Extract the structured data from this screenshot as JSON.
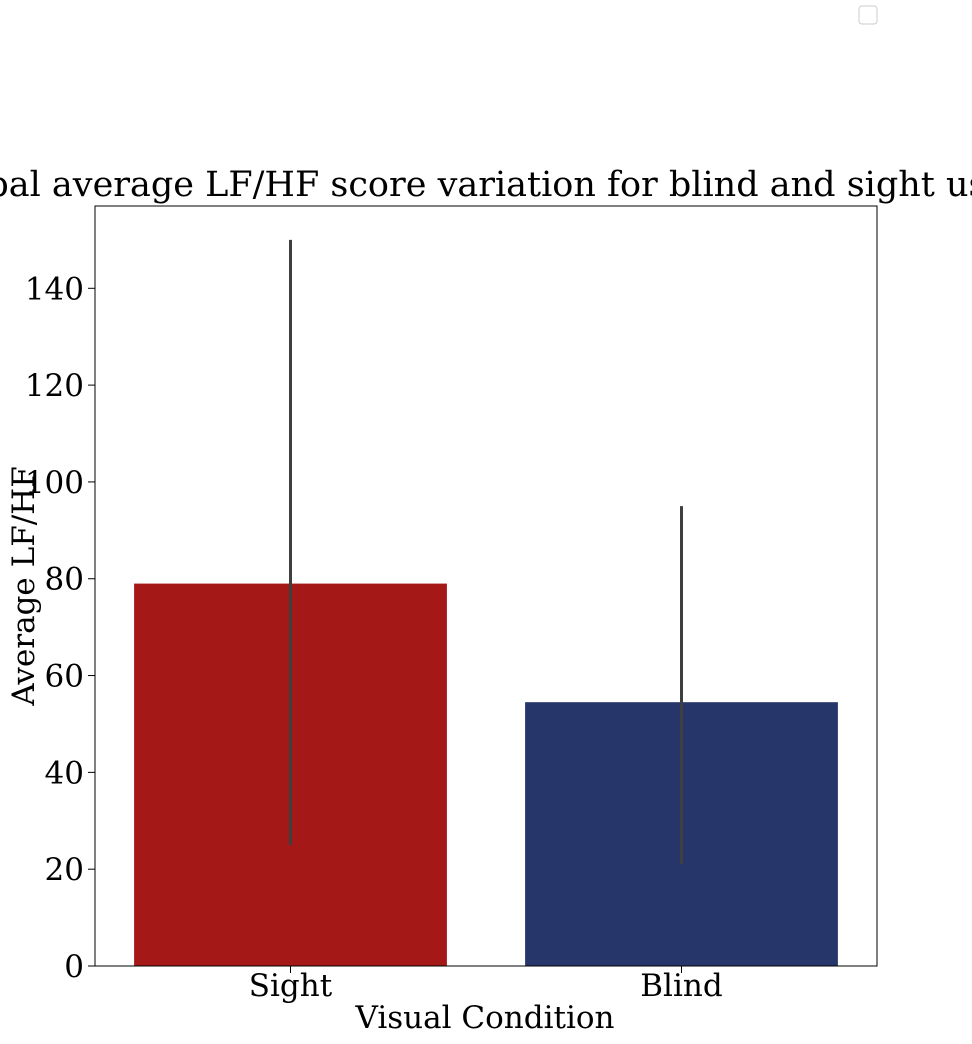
{
  "chart_data": {
    "type": "bar",
    "title": "Global average LF/HF score variation for blind and sight users",
    "xlabel": "Visual Condition",
    "ylabel": "Average LF/HF",
    "categories": [
      "Sight",
      "Blind"
    ],
    "values": [
      79,
      54.5
    ],
    "error_bars": [
      {
        "low": 25,
        "high": 150
      },
      {
        "low": 21,
        "high": 95
      }
    ],
    "colors": [
      "#a51818",
      "#26366a"
    ],
    "error_bar_color": "#3f3f3f",
    "ylim": [
      0,
      157
    ],
    "yticks": [
      0,
      20,
      40,
      60,
      80,
      100,
      120,
      140
    ],
    "grid": false,
    "legend": {
      "placement": "top-right",
      "entries": []
    }
  }
}
